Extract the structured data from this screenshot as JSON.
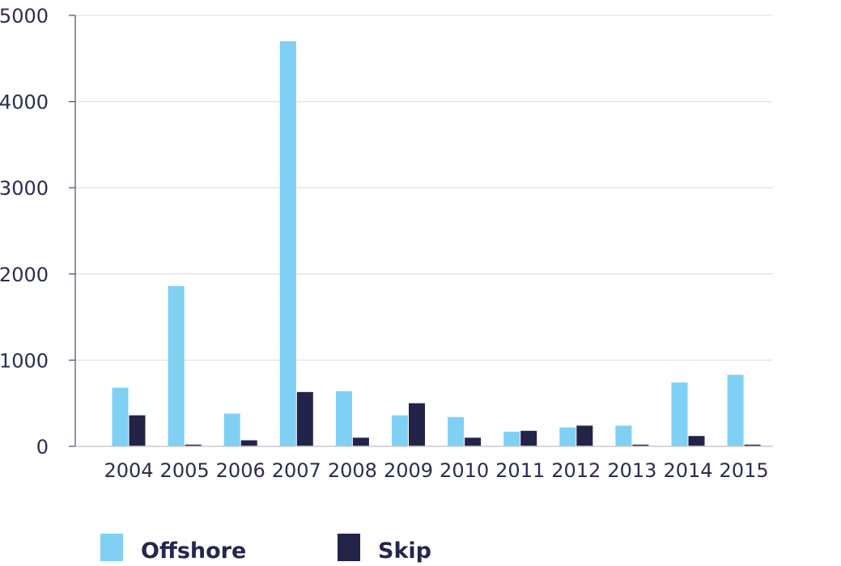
{
  "chart_data": {
    "type": "bar",
    "categories": [
      "2004",
      "2005",
      "2006",
      "2007",
      "2008",
      "2009",
      "2010",
      "2011",
      "2012",
      "2013",
      "2014",
      "2015"
    ],
    "series": [
      {
        "name": "Offshore",
        "color": "#7fd0f3",
        "values": [
          680,
          1860,
          380,
          4700,
          640,
          360,
          340,
          170,
          220,
          240,
          740,
          830
        ]
      },
      {
        "name": "Skip",
        "color": "#232349",
        "values": [
          360,
          20,
          70,
          630,
          100,
          500,
          100,
          180,
          240,
          20,
          120,
          20
        ]
      }
    ],
    "y_ticks": [
      "0",
      "1000",
      "2000",
      "3000",
      "4000",
      "5000"
    ],
    "ylim": [
      0,
      5000
    ],
    "grid": true,
    "legend_position": "bottom-left"
  }
}
